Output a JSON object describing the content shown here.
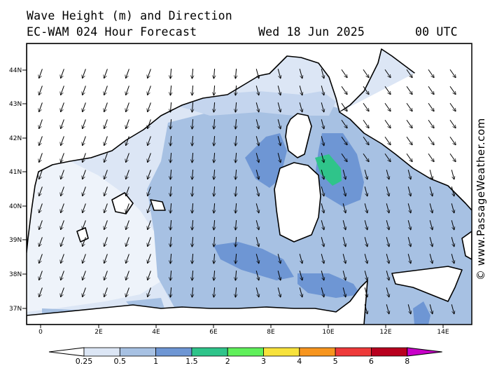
{
  "header": {
    "title": "Wave Height (m) and Direction",
    "model": "EC-WAM 024 Hour Forecast",
    "date": "Wed 18 Jun 2025",
    "time": "00 UTC"
  },
  "credit": "© www.PassageWeather.com",
  "axes": {
    "lat_labels": [
      "44N",
      "43N",
      "42N",
      "41N",
      "40N",
      "39N",
      "38N",
      "37N"
    ],
    "lon_labels": [
      "0",
      "2E",
      "4E",
      "6E",
      "8E",
      "10E",
      "12E",
      "14E"
    ]
  },
  "legend": {
    "levels": [
      "0.25",
      "0.5",
      "1",
      "1.5",
      "2",
      "3",
      "4",
      "5",
      "6",
      "8"
    ],
    "colors": [
      "#ffffff",
      "#dce6f5",
      "#a7c1e3",
      "#6e96d4",
      "#2fc48a",
      "#5ff05a",
      "#f7e23b",
      "#f7951e",
      "#ee3a3a",
      "#b8001e",
      "#c800c8"
    ]
  },
  "colors": {
    "land": "#ffffff",
    "sea_low": "#dce6f5",
    "sea_mid": "#a7c1e3",
    "sea_high": "#6e96d4",
    "sea_peak": "#2fc48a"
  },
  "arrow_direction": "mostly southward, swinging south-west along the Ligurian Sea and the western basin"
}
